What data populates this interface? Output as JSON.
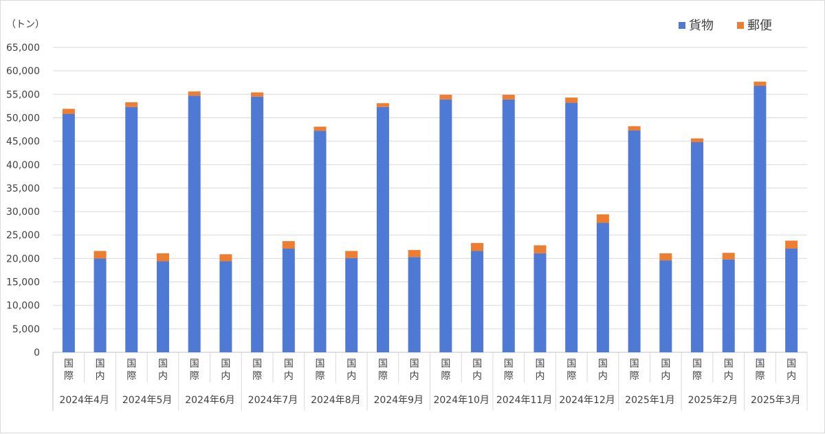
{
  "chart_data": {
    "type": "bar",
    "stacked": true,
    "unit_label": "（トン）",
    "ylim": [
      0,
      65000
    ],
    "y_ticks": [
      "0",
      "5,000",
      "10,000",
      "15,000",
      "20,000",
      "25,000",
      "30,000",
      "35,000",
      "40,000",
      "45,000",
      "50,000",
      "55,000",
      "60,000",
      "65,000"
    ],
    "y_tick_values": [
      0,
      5000,
      10000,
      15000,
      20000,
      25000,
      30000,
      35000,
      40000,
      45000,
      50000,
      55000,
      60000,
      65000
    ],
    "grid": true,
    "legend_position": "top-right",
    "sub_category_labels": [
      [
        "国",
        "際"
      ],
      [
        "国",
        "内"
      ]
    ],
    "groups": [
      "2024年4月",
      "2024年5月",
      "2024年6月",
      "2024年7月",
      "2024年8月",
      "2024年9月",
      "2024年10月",
      "2024年11月",
      "2024年12月",
      "2025年1月",
      "2025年2月",
      "2025年3月"
    ],
    "series": [
      {
        "name": "貨物",
        "color": "#4e79d4",
        "values": [
          50800,
          20000,
          52300,
          19400,
          54700,
          19400,
          54500,
          22100,
          47200,
          20100,
          52300,
          20300,
          53900,
          21600,
          53900,
          21100,
          53200,
          27600,
          47300,
          19600,
          44800,
          19800,
          56800,
          22100
        ]
      },
      {
        "name": "郵便",
        "color": "#ed7d31",
        "values": [
          1100,
          1600,
          1000,
          1700,
          900,
          1500,
          900,
          1600,
          900,
          1500,
          800,
          1500,
          1000,
          1700,
          1000,
          1700,
          1100,
          1800,
          900,
          1500,
          800,
          1400,
          900,
          1700
        ]
      }
    ]
  }
}
